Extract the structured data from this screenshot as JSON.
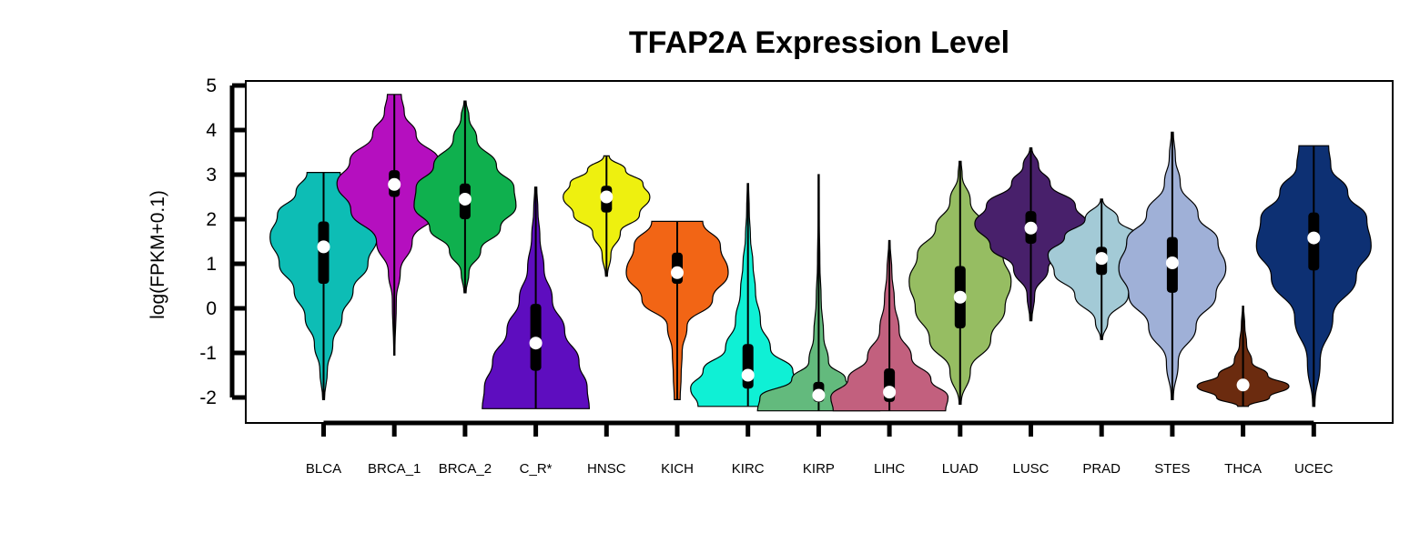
{
  "chart_data": {
    "type": "violin",
    "title": "TFAP2A Expression Level",
    "ylabel": "log(FPKM+0.1)",
    "xlabel": "",
    "ylim": [
      -2.6,
      5
    ],
    "yticks": [
      -2,
      -1,
      0,
      1,
      2,
      3,
      4,
      5
    ],
    "grid": false,
    "categories": [
      "BLCA",
      "BRCA_1",
      "BRCA_2",
      "C_R*",
      "HNSC",
      "KICH",
      "KIRC",
      "KIRP",
      "LIHC",
      "LUAD",
      "LUSC",
      "PRAD",
      "STES",
      "THCA",
      "UCEC"
    ],
    "series": [
      {
        "category": "BLCA",
        "color": "#0dbdb5",
        "min": -2.05,
        "q1": 0.55,
        "median": 1.38,
        "q3": 1.95,
        "max": 3.05,
        "width": 0.42,
        "density": [
          [
            -2.05,
            0.01
          ],
          [
            -1.4,
            0.04
          ],
          [
            -0.8,
            0.1
          ],
          [
            -0.2,
            0.2
          ],
          [
            0.4,
            0.32
          ],
          [
            1.0,
            0.48
          ],
          [
            1.6,
            0.58
          ],
          [
            2.1,
            0.5
          ],
          [
            2.6,
            0.3
          ],
          [
            3.05,
            0.18
          ]
        ]
      },
      {
        "category": "BRCA_1",
        "color": "#b50fbf",
        "min": -1.05,
        "q1": 2.5,
        "median": 2.78,
        "q3": 3.1,
        "max": 4.8,
        "width": 0.45,
        "density": [
          [
            -1.05,
            0.0
          ],
          [
            0.2,
            0.02
          ],
          [
            0.8,
            0.06
          ],
          [
            1.5,
            0.18
          ],
          [
            2.2,
            0.44
          ],
          [
            2.8,
            0.58
          ],
          [
            3.3,
            0.45
          ],
          [
            3.9,
            0.22
          ],
          [
            4.4,
            0.1
          ],
          [
            4.8,
            0.07
          ]
        ]
      },
      {
        "category": "BRCA_2",
        "color": "#0fb04e",
        "min": 0.35,
        "q1": 2.0,
        "median": 2.45,
        "q3": 2.8,
        "max": 4.65,
        "width": 0.4,
        "density": [
          [
            0.35,
            0.01
          ],
          [
            0.8,
            0.04
          ],
          [
            1.3,
            0.16
          ],
          [
            1.8,
            0.36
          ],
          [
            2.3,
            0.52
          ],
          [
            2.7,
            0.5
          ],
          [
            3.2,
            0.32
          ],
          [
            3.8,
            0.12
          ],
          [
            4.3,
            0.04
          ],
          [
            4.65,
            0.01
          ]
        ]
      },
      {
        "category": "C_R*",
        "color": "#5e0dbf",
        "min": -2.25,
        "q1": -1.4,
        "median": -0.78,
        "q3": 0.1,
        "max": 2.72,
        "width": 0.42,
        "density": [
          [
            -2.25,
            0.52
          ],
          [
            -1.8,
            0.5
          ],
          [
            -1.2,
            0.42
          ],
          [
            -0.5,
            0.28
          ],
          [
            0.2,
            0.16
          ],
          [
            0.9,
            0.08
          ],
          [
            1.6,
            0.04
          ],
          [
            2.2,
            0.02
          ],
          [
            2.72,
            0.01
          ]
        ]
      },
      {
        "category": "HNSC",
        "color": "#eef00f",
        "min": 0.72,
        "q1": 2.15,
        "median": 2.5,
        "q3": 2.75,
        "max": 3.42,
        "width": 0.34,
        "density": [
          [
            0.72,
            0.01
          ],
          [
            1.2,
            0.05
          ],
          [
            1.7,
            0.16
          ],
          [
            2.1,
            0.38
          ],
          [
            2.5,
            0.5
          ],
          [
            2.8,
            0.42
          ],
          [
            3.1,
            0.22
          ],
          [
            3.42,
            0.03
          ]
        ]
      },
      {
        "category": "KICH",
        "color": "#f26515",
        "min": -2.05,
        "q1": 0.55,
        "median": 0.8,
        "q3": 1.25,
        "max": 1.95,
        "width": 0.4,
        "density": [
          [
            -2.05,
            0.03
          ],
          [
            -1.5,
            0.04
          ],
          [
            -1.0,
            0.05
          ],
          [
            -0.4,
            0.1
          ],
          [
            0.2,
            0.36
          ],
          [
            0.8,
            0.52
          ],
          [
            1.4,
            0.44
          ],
          [
            1.95,
            0.26
          ]
        ]
      },
      {
        "category": "KIRC",
        "color": "#0ff0d5",
        "min": -2.2,
        "q1": -1.8,
        "median": -1.5,
        "q3": -0.8,
        "max": 2.8,
        "width": 0.45,
        "density": [
          [
            -2.2,
            0.4
          ],
          [
            -1.8,
            0.46
          ],
          [
            -1.4,
            0.36
          ],
          [
            -0.9,
            0.18
          ],
          [
            -0.3,
            0.1
          ],
          [
            0.4,
            0.06
          ],
          [
            1.0,
            0.04
          ],
          [
            1.6,
            0.02
          ],
          [
            2.2,
            0.01
          ],
          [
            2.8,
            0.005
          ]
        ]
      },
      {
        "category": "KIRP",
        "color": "#63ba7d",
        "min": -2.3,
        "q1": -2.1,
        "median": -1.95,
        "q3": -1.65,
        "max": 3.0,
        "width": 0.48,
        "density": [
          [
            -2.3,
            0.5
          ],
          [
            -2.0,
            0.48
          ],
          [
            -1.6,
            0.22
          ],
          [
            -1.2,
            0.08
          ],
          [
            -0.6,
            0.04
          ],
          [
            0.2,
            0.02
          ],
          [
            1.0,
            0.01
          ],
          [
            2.0,
            0.005
          ],
          [
            3.0,
            0.004
          ]
        ]
      },
      {
        "category": "LIHC",
        "color": "#c2607e",
        "min": -2.3,
        "q1": -2.1,
        "median": -1.88,
        "q3": -1.35,
        "max": 1.52,
        "width": 0.46,
        "density": [
          [
            -2.3,
            0.46
          ],
          [
            -2.0,
            0.48
          ],
          [
            -1.6,
            0.34
          ],
          [
            -1.1,
            0.18
          ],
          [
            -0.5,
            0.08
          ],
          [
            0.2,
            0.04
          ],
          [
            0.8,
            0.02
          ],
          [
            1.52,
            0.005
          ]
        ]
      },
      {
        "category": "LUAD",
        "color": "#96bd62",
        "min": -2.15,
        "q1": -0.45,
        "median": 0.25,
        "q3": 0.95,
        "max": 3.3,
        "width": 0.4,
        "density": [
          [
            -2.15,
            0.01
          ],
          [
            -1.4,
            0.1
          ],
          [
            -0.7,
            0.3
          ],
          [
            0.0,
            0.44
          ],
          [
            0.6,
            0.5
          ],
          [
            1.2,
            0.42
          ],
          [
            1.8,
            0.24
          ],
          [
            2.4,
            0.1
          ],
          [
            3.0,
            0.02
          ],
          [
            3.3,
            0.01
          ]
        ]
      },
      {
        "category": "LUSC",
        "color": "#48206b",
        "min": -0.28,
        "q1": 1.45,
        "median": 1.8,
        "q3": 2.18,
        "max": 3.6,
        "width": 0.44,
        "density": [
          [
            -0.28,
            0.01
          ],
          [
            0.3,
            0.04
          ],
          [
            0.9,
            0.18
          ],
          [
            1.4,
            0.42
          ],
          [
            1.9,
            0.58
          ],
          [
            2.3,
            0.46
          ],
          [
            2.8,
            0.2
          ],
          [
            3.2,
            0.08
          ],
          [
            3.6,
            0.01
          ]
        ]
      },
      {
        "category": "PRAD",
        "color": "#a3cad6",
        "min": -0.7,
        "q1": 0.75,
        "median": 1.12,
        "q3": 1.38,
        "max": 2.45,
        "width": 0.42,
        "density": [
          [
            -0.7,
            0.01
          ],
          [
            -0.3,
            0.06
          ],
          [
            0.3,
            0.26
          ],
          [
            0.8,
            0.46
          ],
          [
            1.2,
            0.52
          ],
          [
            1.6,
            0.36
          ],
          [
            2.0,
            0.16
          ],
          [
            2.45,
            0.01
          ]
        ]
      },
      {
        "category": "STES",
        "color": "#9fb0d7",
        "min": -2.05,
        "q1": 0.35,
        "median": 1.02,
        "q3": 1.6,
        "max": 3.95,
        "width": 0.42,
        "density": [
          [
            -2.05,
            0.01
          ],
          [
            -1.2,
            0.06
          ],
          [
            -0.4,
            0.24
          ],
          [
            0.3,
            0.44
          ],
          [
            0.9,
            0.54
          ],
          [
            1.5,
            0.46
          ],
          [
            2.1,
            0.26
          ],
          [
            2.8,
            0.08
          ],
          [
            3.4,
            0.03
          ],
          [
            3.95,
            0.01
          ]
        ]
      },
      {
        "category": "THCA",
        "color": "#6b2b0f",
        "min": -2.2,
        "q1": -1.8,
        "median": -1.72,
        "q3": -1.6,
        "max": 0.05,
        "width": 0.36,
        "density": [
          [
            -2.2,
            0.06
          ],
          [
            -2.0,
            0.3
          ],
          [
            -1.75,
            0.52
          ],
          [
            -1.5,
            0.28
          ],
          [
            -1.2,
            0.1
          ],
          [
            -0.8,
            0.04
          ],
          [
            -0.4,
            0.02
          ],
          [
            0.05,
            0.005
          ]
        ]
      },
      {
        "category": "UCEC",
        "color": "#0d3073",
        "min": -2.2,
        "q1": 0.85,
        "median": 1.58,
        "q3": 2.15,
        "max": 3.65,
        "width": 0.45,
        "density": [
          [
            -2.2,
            0.01
          ],
          [
            -1.2,
            0.06
          ],
          [
            -0.2,
            0.18
          ],
          [
            0.7,
            0.4
          ],
          [
            1.4,
            0.54
          ],
          [
            2.0,
            0.5
          ],
          [
            2.6,
            0.32
          ],
          [
            3.2,
            0.16
          ],
          [
            3.65,
            0.14
          ]
        ]
      }
    ]
  }
}
